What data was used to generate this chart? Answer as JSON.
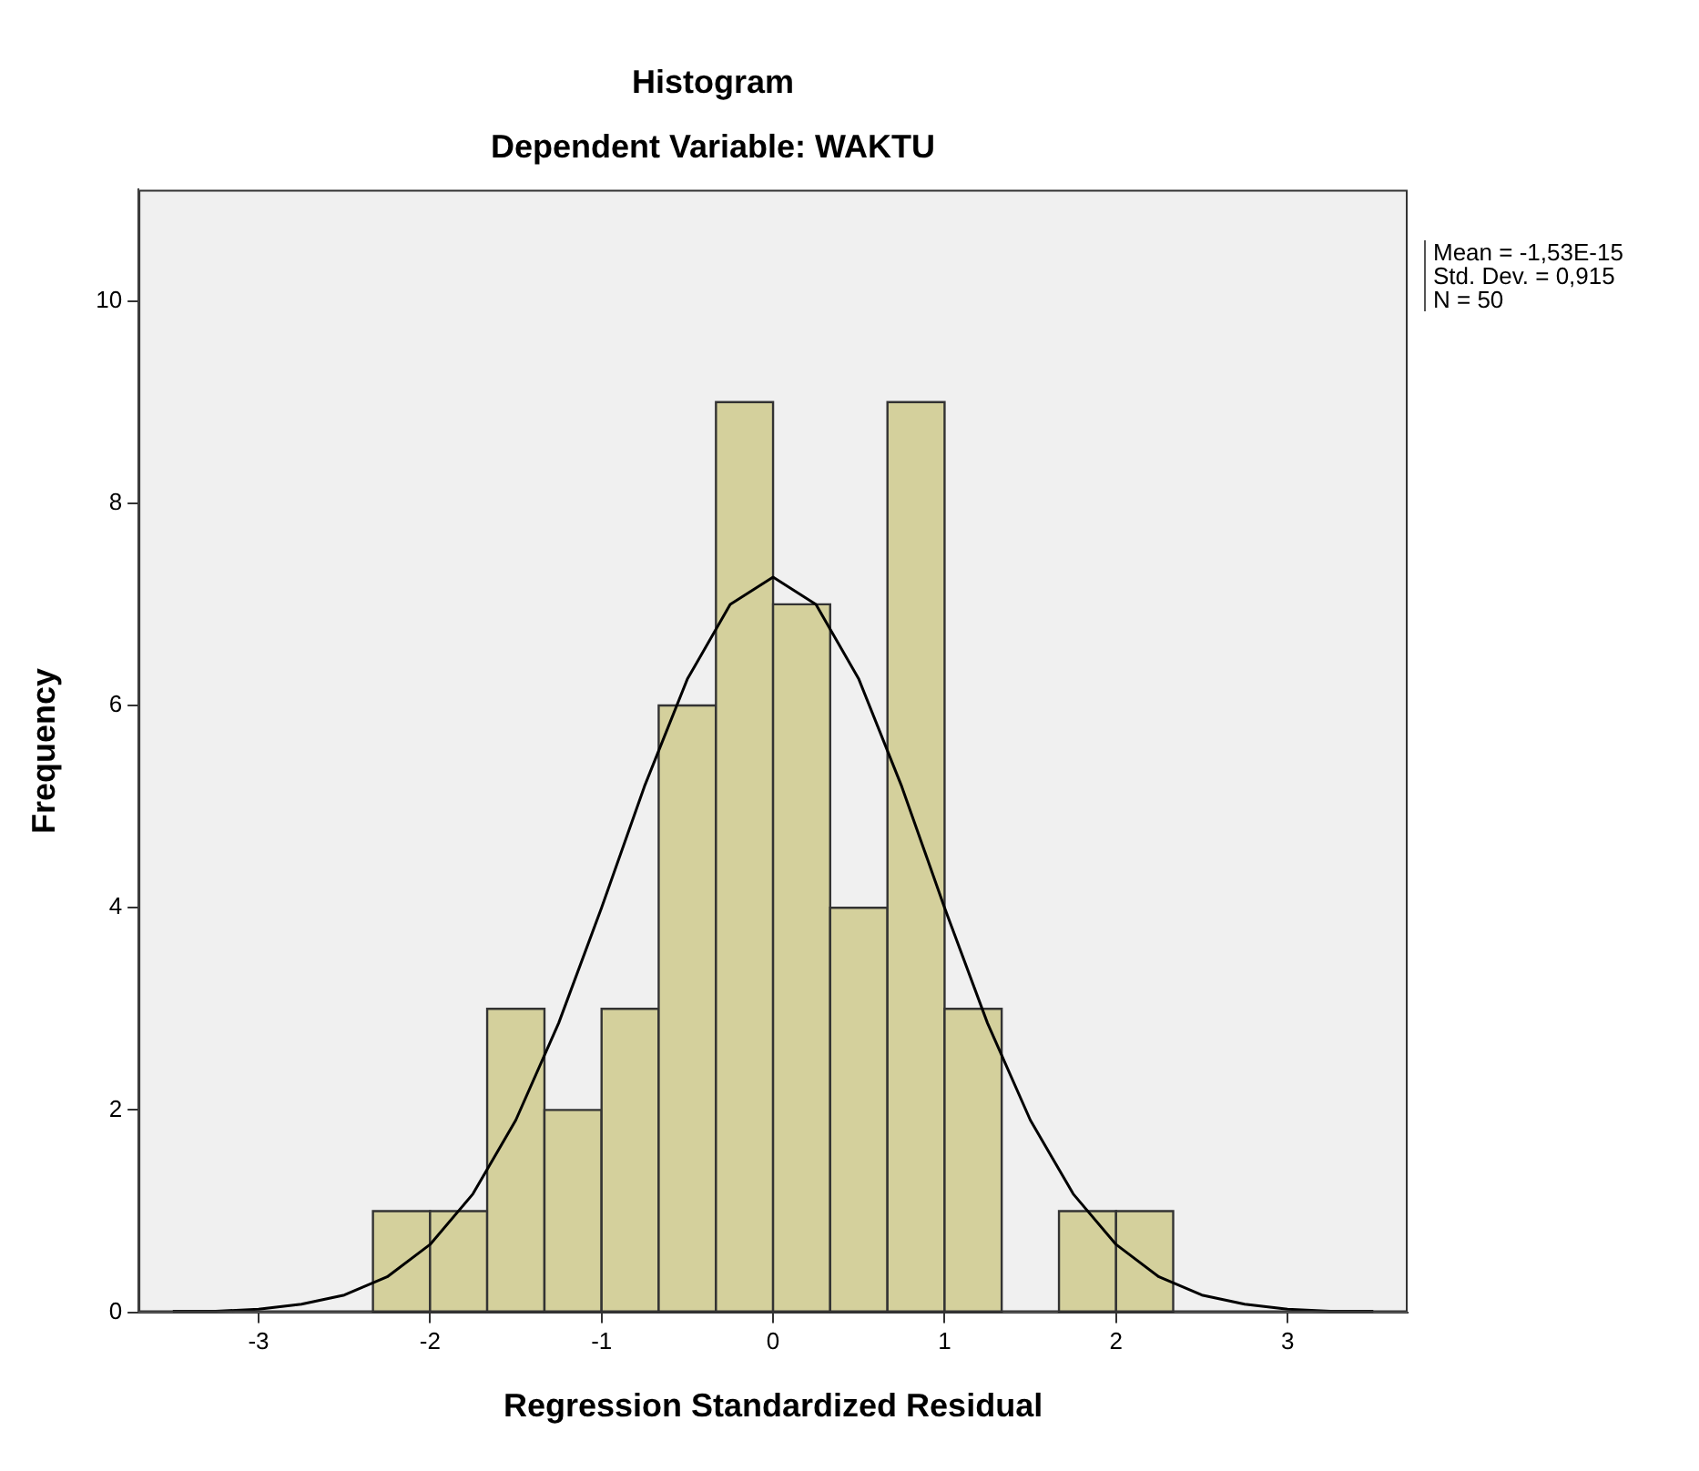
{
  "chart_data": {
    "type": "histogram",
    "title": "Histogram",
    "subtitle": "Dependent Variable: WAKTU",
    "xlabel": "Regression Standardized Residual",
    "ylabel": "Frequency",
    "bins": [
      -2.333,
      -2,
      -1.667,
      -1.333,
      -1,
      -0.667,
      -0.333,
      0,
      0.333,
      0.667,
      1,
      1.333,
      1.667,
      2,
      2.333
    ],
    "values": [
      1,
      1,
      3,
      2,
      3,
      6,
      9,
      7,
      4,
      9,
      3,
      0,
      1,
      1
    ],
    "color": "#d4d09c",
    "series": [
      {
        "type": "line",
        "color": "#000000",
        "x": [
          -3.5,
          -3.25,
          -3,
          -2.75,
          -2.5,
          -2.25,
          -2,
          -1.75,
          -1.5,
          -1.25,
          -1,
          -0.75,
          -0.5,
          -0.25,
          0,
          0.25,
          0.5,
          0.75,
          1,
          1.25,
          1.5,
          1.75,
          2,
          2.25,
          2.5,
          2.75,
          3,
          3.25,
          3.5
        ],
        "values": [
          0.01,
          0.01,
          0.03,
          0.08,
          0.17,
          0.35,
          0.67,
          1.17,
          1.9,
          2.86,
          4,
          5.2,
          6.26,
          7,
          7.27,
          7,
          6.26,
          5.2,
          4,
          2.86,
          1.9,
          1.17,
          0.67,
          0.35,
          0.17,
          0.08,
          0.03,
          0.01,
          0.01
        ]
      }
    ],
    "xlim": [
      -3.7,
      3.7
    ],
    "xticks": [
      -3,
      -2,
      -1,
      0,
      1,
      2,
      3
    ],
    "ylim": [
      0,
      11.1
    ],
    "yticks": [
      0,
      2,
      4,
      6,
      8,
      10
    ],
    "grid": false,
    "legend": false,
    "marker": "none",
    "annotations": [
      "Mean = -1,53E-15",
      "Std. Dev. = 0,915",
      "N = 50"
    ]
  }
}
